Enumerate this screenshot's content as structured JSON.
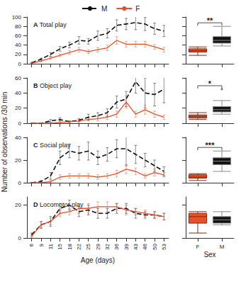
{
  "ylabel": "Number of observations /30 min",
  "chart_data": [
    {
      "type": "line",
      "panel": "A",
      "title": "Total play",
      "legend": "top",
      "tick_labels": "y",
      "grid": false,
      "categories": [
        6,
        9,
        11,
        15,
        18,
        22,
        25,
        29,
        32,
        36,
        39,
        43,
        46,
        50,
        53
      ],
      "ylim": [
        0,
        100
      ],
      "yticks": [
        0,
        20,
        40,
        60,
        80,
        100
      ],
      "series": [
        {
          "name": "M",
          "color": "#111111",
          "line_style": "dashed",
          "values": [
            2,
            10,
            20,
            32,
            40,
            50,
            48,
            60,
            65,
            82,
            85,
            88,
            85,
            75,
            70
          ],
          "errors": [
            1,
            2,
            4,
            5,
            6,
            8,
            6,
            10,
            10,
            12,
            12,
            15,
            14,
            12,
            12
          ]
        },
        {
          "name": "F",
          "color": "#e8502a",
          "line_style": "solid",
          "values": [
            1,
            6,
            12,
            18,
            24,
            30,
            26,
            30,
            34,
            50,
            42,
            42,
            42,
            36,
            30
          ],
          "errors": [
            1,
            2,
            3,
            3,
            4,
            5,
            4,
            5,
            6,
            8,
            6,
            6,
            6,
            5,
            5
          ]
        }
      ]
    },
    {
      "type": "boxplot",
      "tick_labels": false,
      "grid": false,
      "categories": [
        "F",
        "M"
      ],
      "colors": [
        "#e8502a",
        "#111111"
      ],
      "ylim": [
        0,
        100
      ],
      "yticks": [
        0,
        20,
        40,
        60,
        80,
        100
      ],
      "boxes": [
        [
          18,
          25,
          28,
          32,
          36
        ],
        [
          38,
          44,
          50,
          58,
          80
        ]
      ],
      "annotation": "**"
    },
    {
      "type": "line",
      "panel": "B",
      "title": "Object play",
      "tick_labels": "y",
      "grid": false,
      "categories": [
        6,
        9,
        11,
        15,
        18,
        22,
        25,
        29,
        32,
        36,
        39,
        43,
        46,
        50,
        53
      ],
      "ylim": [
        0,
        60
      ],
      "yticks": [
        0,
        20,
        40,
        60
      ],
      "series": [
        {
          "name": "M",
          "color": "#111111",
          "line_style": "dashed",
          "values": [
            0,
            0,
            3,
            5,
            2,
            4,
            8,
            10,
            14,
            28,
            32,
            55,
            40,
            38,
            45
          ],
          "errors": [
            0,
            0,
            2,
            2,
            1,
            2,
            4,
            4,
            5,
            8,
            10,
            15,
            20,
            15,
            18
          ]
        },
        {
          "name": "F",
          "color": "#e8502a",
          "line_style": "solid",
          "values": [
            0,
            0,
            0,
            1,
            2,
            3,
            5,
            6,
            8,
            12,
            28,
            12,
            18,
            12,
            8
          ],
          "errors": [
            0,
            0,
            0,
            1,
            1,
            2,
            2,
            3,
            3,
            4,
            8,
            4,
            6,
            4,
            3
          ]
        }
      ]
    },
    {
      "type": "boxplot",
      "tick_labels": false,
      "grid": false,
      "categories": [
        "F",
        "M"
      ],
      "colors": [
        "#e8502a",
        "#111111"
      ],
      "ylim": [
        0,
        60
      ],
      "yticks": [
        0,
        20,
        40,
        60
      ],
      "boxes": [
        [
          5,
          7,
          9,
          11,
          14
        ],
        [
          12,
          15,
          18,
          22,
          30
        ]
      ],
      "outliers": [
        [],
        [
          45
        ]
      ],
      "annotation": "*"
    },
    {
      "type": "line",
      "panel": "C",
      "title": "Social play",
      "tick_labels": "y",
      "grid": false,
      "categories": [
        6,
        9,
        11,
        15,
        18,
        22,
        25,
        29,
        32,
        36,
        39,
        43,
        46,
        50,
        53
      ],
      "ylim": [
        0,
        40
      ],
      "yticks": [
        0,
        20,
        40
      ],
      "series": [
        {
          "name": "M",
          "color": "#111111",
          "line_style": "dashed",
          "values": [
            0,
            1,
            6,
            22,
            28,
            26,
            28,
            22,
            25,
            30,
            30,
            25,
            20,
            15,
            10
          ],
          "errors": [
            0,
            1,
            3,
            6,
            6,
            6,
            8,
            6,
            6,
            8,
            15,
            8,
            6,
            5,
            4
          ]
        },
        {
          "name": "F",
          "color": "#e8502a",
          "line_style": "solid",
          "values": [
            0,
            0,
            1,
            5,
            6,
            6,
            6,
            5,
            6,
            8,
            12,
            10,
            6,
            9,
            7
          ],
          "errors": [
            0,
            0,
            1,
            2,
            2,
            2,
            2,
            2,
            2,
            3,
            4,
            3,
            2,
            3,
            2
          ]
        }
      ]
    },
    {
      "type": "boxplot",
      "tick_labels": false,
      "grid": false,
      "categories": [
        "F",
        "M"
      ],
      "colors": [
        "#e8502a",
        "#111111"
      ],
      "ylim": [
        0,
        40
      ],
      "yticks": [
        0,
        20,
        40
      ],
      "boxes": [
        [
          2,
          4,
          5,
          7,
          8
        ],
        [
          10,
          16,
          19,
          22,
          28
        ]
      ],
      "annotation": "***"
    },
    {
      "type": "line",
      "panel": "D",
      "title": "Locomotor play",
      "xlabel": "Age (days)",
      "grid": false,
      "categories": [
        6,
        9,
        11,
        15,
        18,
        22,
        25,
        29,
        32,
        36,
        39,
        43,
        46,
        50,
        53
      ],
      "ylim": [
        0,
        25
      ],
      "yticks": [
        0,
        20
      ],
      "series": [
        {
          "name": "M",
          "color": "#111111",
          "line_style": "dashed",
          "values": [
            2,
            8,
            10,
            18,
            20,
            16,
            17,
            15,
            15,
            18,
            18,
            15,
            14,
            14,
            13
          ],
          "errors": [
            1,
            2,
            3,
            3,
            3,
            3,
            3,
            3,
            3,
            3,
            3,
            3,
            2,
            2,
            2
          ]
        },
        {
          "name": "F",
          "color": "#e8502a",
          "line_style": "solid",
          "values": [
            1,
            8,
            10,
            15,
            16,
            18,
            18,
            19,
            19,
            19,
            17,
            16,
            15,
            14,
            13
          ],
          "errors": [
            1,
            2,
            2,
            2,
            2,
            3,
            3,
            3,
            3,
            2,
            3,
            2,
            2,
            2,
            2
          ]
        }
      ]
    },
    {
      "type": "boxplot",
      "tick_labels": "x",
      "xlabel": "Sex",
      "grid": false,
      "categories": [
        "F",
        "M"
      ],
      "colors": [
        "#e8502a",
        "#111111"
      ],
      "ylim": [
        0,
        25
      ],
      "yticks": [
        0,
        20
      ],
      "boxes": [
        [
          3,
          9,
          13,
          15,
          16
        ],
        [
          8,
          9,
          11,
          13,
          16
        ]
      ]
    }
  ]
}
